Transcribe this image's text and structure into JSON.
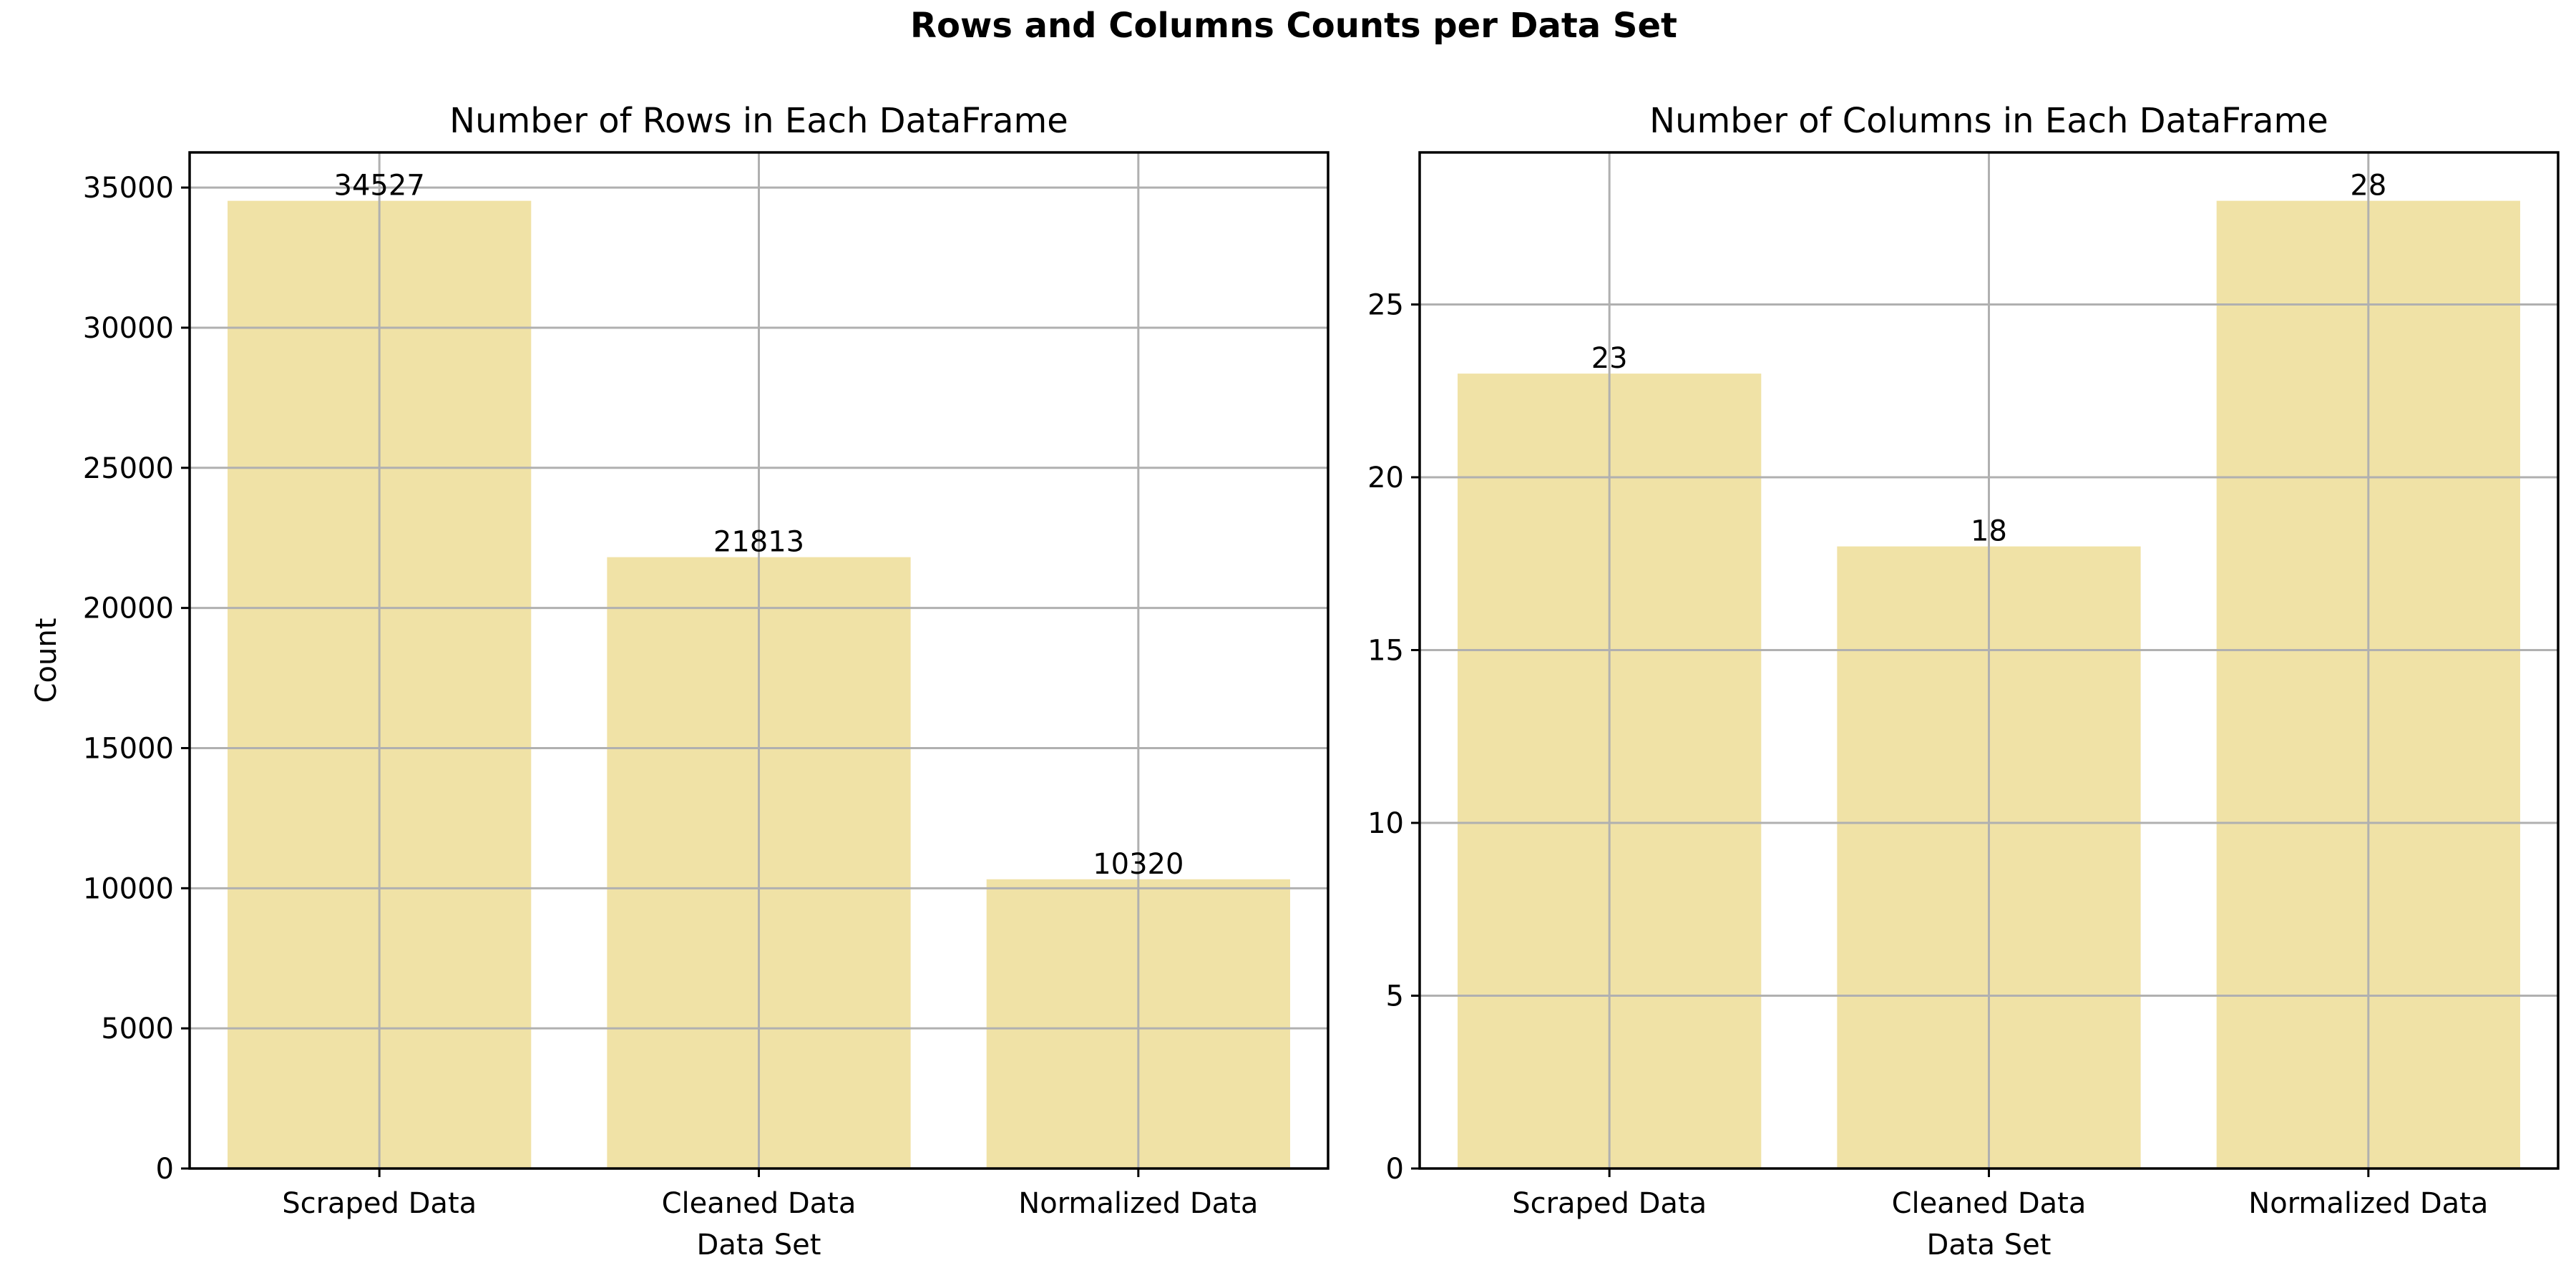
{
  "figure": {
    "title": "Rows and Columns Counts per Data Set"
  },
  "colors": {
    "bar": "#F0E2A6",
    "grid": "#b0b0b0",
    "axis": "#000000"
  },
  "chart_data": [
    {
      "type": "bar",
      "title": "Number of Rows in Each DataFrame",
      "xlabel": "Data Set",
      "ylabel": "Count",
      "categories": [
        "Scraped Data",
        "Cleaned Data",
        "Normalized Data"
      ],
      "values": [
        34527,
        21813,
        10320
      ],
      "value_labels": [
        "34527",
        "21813",
        "10320"
      ],
      "yticks": [
        0,
        5000,
        10000,
        15000,
        20000,
        25000,
        30000,
        35000
      ],
      "ytick_labels": [
        "0",
        "5000",
        "10000",
        "15000",
        "20000",
        "25000",
        "30000",
        "35000"
      ],
      "ylim": [
        0,
        36254
      ],
      "grid": true
    },
    {
      "type": "bar",
      "title": "Number of Columns in Each DataFrame",
      "xlabel": "Data Set",
      "ylabel": "",
      "categories": [
        "Scraped Data",
        "Cleaned Data",
        "Normalized Data"
      ],
      "values": [
        23,
        18,
        28
      ],
      "value_labels": [
        "23",
        "18",
        "28"
      ],
      "yticks": [
        0,
        5,
        10,
        15,
        20,
        25
      ],
      "ytick_labels": [
        "0",
        "5",
        "10",
        "15",
        "20",
        "25"
      ],
      "ylim": [
        0,
        29.4
      ],
      "grid": true
    }
  ]
}
